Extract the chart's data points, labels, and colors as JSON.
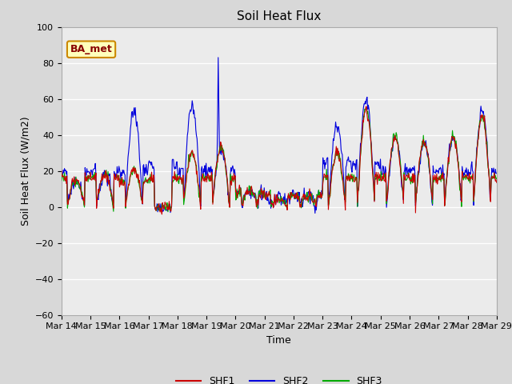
{
  "title": "Soil Heat Flux",
  "xlabel": "Time",
  "ylabel": "Soil Heat Flux (W/m2)",
  "ylim": [
    -60,
    100
  ],
  "yticks": [
    -60,
    -40,
    -20,
    0,
    20,
    40,
    60,
    80,
    100
  ],
  "date_labels": [
    "Mar 14",
    "Mar 15",
    "Mar 16",
    "Mar 17",
    "Mar 18",
    "Mar 19",
    "Mar 20",
    "Mar 21",
    "Mar 22",
    "Mar 23",
    "Mar 24",
    "Mar 25",
    "Mar 26",
    "Mar 27",
    "Mar 28",
    "Mar 29"
  ],
  "shf1_color": "#cc0000",
  "shf2_color": "#0000dd",
  "shf3_color": "#00aa00",
  "legend_labels": [
    "SHF1",
    "SHF2",
    "SHF3"
  ],
  "bg_color": "#e8e8e8",
  "plot_bg": "#ebebeb",
  "annotation_text": "BA_met",
  "annotation_bg": "#ffffbb",
  "annotation_border": "#cc8800",
  "annotation_text_color": "#880000",
  "title_fontsize": 11,
  "label_fontsize": 9,
  "tick_fontsize": 8
}
